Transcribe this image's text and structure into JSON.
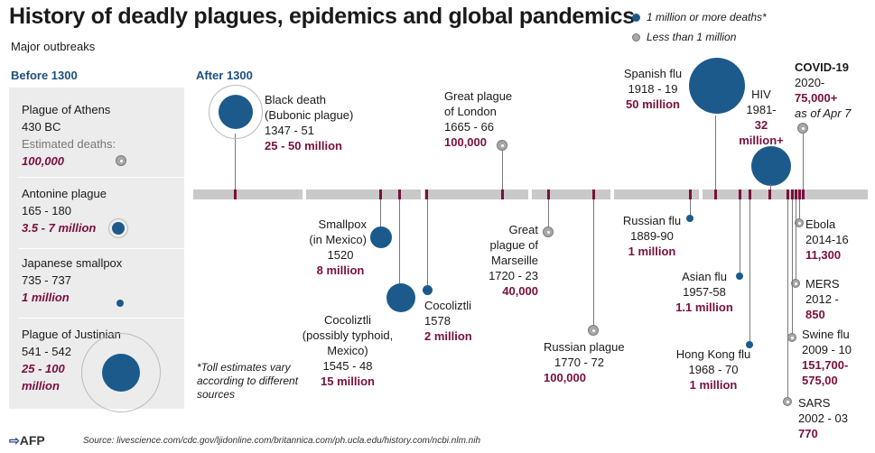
{
  "title": "History of deadly  plagues, epidemics and global pandemics",
  "subtitle": "Major outbreaks",
  "legend": {
    "large": "1 million or more deaths*",
    "small": "Less than 1 million"
  },
  "sections": {
    "before": "Before 1300",
    "after": "After 1300"
  },
  "before_1300": [
    {
      "name": "Plague of Athens",
      "years": "430 BC",
      "est_label": "Estimated deaths:",
      "deaths": "100,000"
    },
    {
      "name": "Antonine plague",
      "years": "165 - 180",
      "deaths": "3.5 - 7 million"
    },
    {
      "name": "Japanese smallpox",
      "years": "735 - 737",
      "deaths": "1 million"
    },
    {
      "name": "Plague of Justinian",
      "years": "541 - 542",
      "deaths_line1": "25 - 100",
      "deaths_line2": "million"
    }
  ],
  "events": {
    "black_death": {
      "l1": "Black death",
      "l2": "(Bubonic plague)",
      "years": "1347 - 51",
      "deaths": "25 - 50 million"
    },
    "smallpox_mexico": {
      "l1": "Smallpox",
      "l2": "(in Mexico)",
      "years": "1520",
      "deaths": "8 million"
    },
    "cocoliztli_1545": {
      "l1": "Cocoliztli",
      "l2": "(possibly typhoid,",
      "l3": "Mexico)",
      "years": "1545 - 48",
      "deaths": "15 million"
    },
    "cocoliztli_1578": {
      "l1": "Cocoliztli",
      "years": "1578",
      "deaths": "2 million"
    },
    "great_plague_london": {
      "l1": "Great plague",
      "l2": "of London",
      "years": "1665 - 66",
      "deaths": "100,000"
    },
    "plague_marseille": {
      "l1": "Great",
      "l2": "plague of",
      "l3": "Marseille",
      "years": "1720 - 23",
      "deaths": "40,000"
    },
    "russian_plague": {
      "l1": "Russian plague",
      "years": "1770 - 72",
      "deaths": "100,000"
    },
    "russian_flu": {
      "l1": "Russian flu",
      "years": "1889-90",
      "deaths": "1 million"
    },
    "spanish_flu": {
      "l1": "Spanish flu",
      "years": "1918 - 19",
      "deaths": "50 million"
    },
    "asian_flu": {
      "l1": "Asian flu",
      "years": "1957-58",
      "deaths": "1.1 million"
    },
    "hong_kong_flu": {
      "l1": "Hong Kong flu",
      "years": "1968 - 70",
      "deaths": "1 million"
    },
    "hiv": {
      "l1": "HIV",
      "years": "1981-",
      "deaths_l1": "32",
      "deaths_l2": "million+"
    },
    "covid": {
      "l1": "COVID-19",
      "years": "2020-",
      "deaths": "75,000+",
      "note": "as of Apr 7"
    },
    "ebola": {
      "l1": "Ebola",
      "years": "2014-16",
      "deaths": "11,300"
    },
    "mers": {
      "l1": "MERS",
      "years": "2012 -",
      "deaths": "850"
    },
    "swine_flu": {
      "l1": "Swine flu",
      "years": "2009 - 10",
      "deaths_l1": "151,700-",
      "deaths_l2": "575,00"
    },
    "sars": {
      "l1": "SARS",
      "years": "2002 - 03",
      "deaths": "770"
    }
  },
  "footnote": "*Toll estimates vary according to different sources",
  "footnote_lines": [
    "*Toll estimates vary",
    "according to different",
    "sources"
  ],
  "source": "Source: livescience.com/cdc.gov/ljidonline.com/britannica.com/ph.ucla.edu/history.com/ncbi.nlm.nih",
  "agency": "AFP",
  "colors": {
    "large": "#1d5a8c",
    "small": "#a8a8a8",
    "accent": "#7a0f3d",
    "heading": "#1d4f7f",
    "bar": "#c9c9c9"
  }
}
